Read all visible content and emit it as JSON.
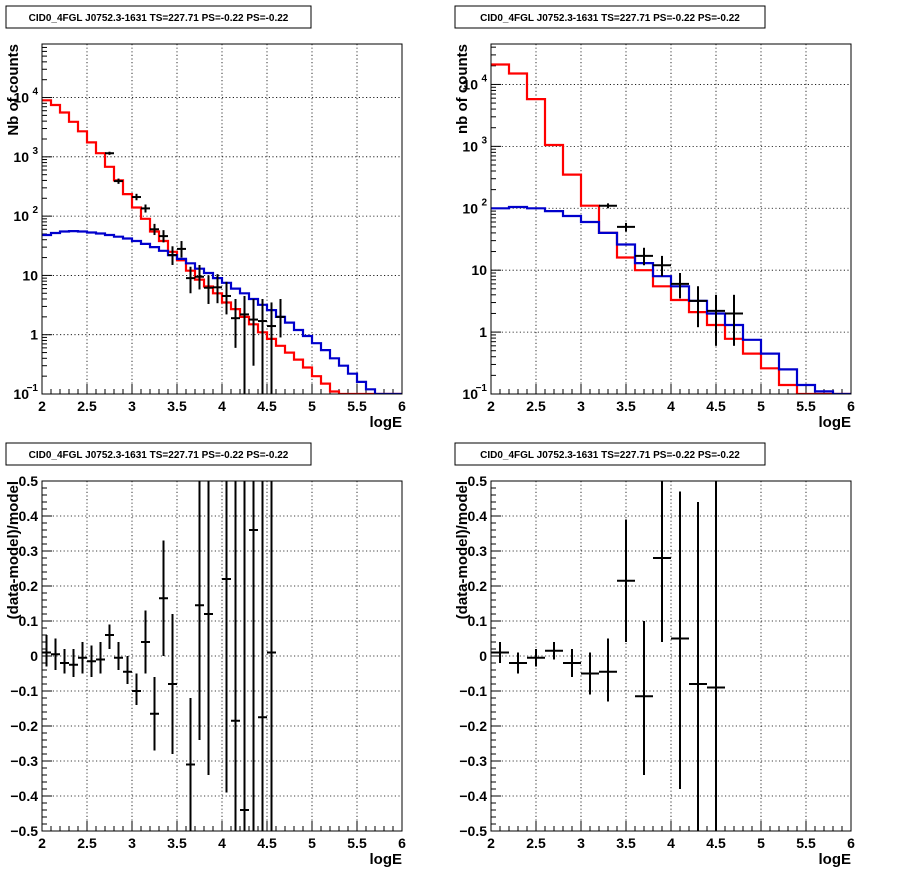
{
  "chart_data": [
    {
      "type": "line",
      "title": "CID0_4FGL J0752.3-1631 TS=227.71 PS=-0.22 PS=-0.22",
      "xlabel": "logE",
      "ylabel": "Nb of counts",
      "xlim": [
        2,
        6
      ],
      "ylim": [
        0.1,
        80000
      ],
      "yscale": "log",
      "grid": true,
      "xticks": [
        "2",
        "2.5",
        "3",
        "3.5",
        "4",
        "4.5",
        "5",
        "5.5",
        "6"
      ],
      "yticks": [
        {
          "v": 0.1,
          "label": "10",
          "sup": "−1"
        },
        {
          "v": 1,
          "label": "1",
          "sup": ""
        },
        {
          "v": 10,
          "label": "10",
          "sup": ""
        },
        {
          "v": 100,
          "label": "10",
          "sup": "2"
        },
        {
          "v": 1000,
          "label": "10",
          "sup": "3"
        },
        {
          "v": 10000,
          "label": "10",
          "sup": "4"
        }
      ],
      "bin_width": 0.1,
      "series": [
        {
          "color": "#ff0000",
          "style": "step",
          "values": [
            9000,
            7500,
            5600,
            3900,
            2700,
            1750,
            1150,
            680,
            400,
            235,
            140,
            90,
            55,
            38,
            25,
            18,
            12,
            8.5,
            6.5,
            5,
            3.5,
            2.7,
            2,
            1.5,
            1.1,
            0.85,
            0.65,
            0.5,
            0.38,
            0.28,
            0.2,
            0.15,
            0.11,
            0.1,
            0.1,
            0.1,
            0.1,
            0.1,
            0.1,
            0.1
          ]
        },
        {
          "color": "#0000cc",
          "style": "step",
          "values": [
            48,
            52,
            55,
            56,
            55,
            53,
            51,
            48,
            45,
            42,
            38,
            34,
            30,
            26,
            22,
            19,
            16,
            13,
            11,
            9,
            7.5,
            6,
            5,
            4,
            3.2,
            2.6,
            2,
            1.6,
            1.2,
            0.95,
            0.72,
            0.55,
            0.4,
            0.3,
            0.22,
            0.16,
            0.12,
            0.1,
            0.1,
            0.1
          ]
        },
        {
          "color": "#000000",
          "style": "points",
          "points": [
            [
              2.75,
              1150,
              1080,
              1220
            ],
            [
              2.85,
              390,
              350,
              430
            ],
            [
              3.05,
              210,
              185,
              238
            ],
            [
              3.15,
              135,
              115,
              157
            ],
            [
              3.25,
              60,
              48,
              74
            ],
            [
              3.35,
              46,
              36,
              58
            ],
            [
              3.45,
              22,
              15,
              31
            ],
            [
              3.55,
              28,
              20,
              38
            ],
            [
              3.65,
              9,
              5,
              14
            ],
            [
              3.75,
              9.5,
              5.8,
              15
            ],
            [
              3.85,
              6.2,
              3.3,
              10
            ],
            [
              3.95,
              6.3,
              3.4,
              10.5
            ],
            [
              4.05,
              4.5,
              2.2,
              7.8
            ],
            [
              4.15,
              1.9,
              0.6,
              4
            ],
            [
              4.25,
              2.2,
              0.1,
              4.5
            ],
            [
              4.35,
              1.8,
              0.3,
              4
            ],
            [
              4.45,
              1.7,
              0.1,
              4
            ],
            [
              4.55,
              1.4,
              0.1,
              3.5
            ],
            [
              4.65,
              2,
              0.9,
              4
            ]
          ]
        }
      ]
    },
    {
      "type": "line",
      "title": "CID0_4FGL J0752.3-1631 TS=227.71 PS=-0.22 PS=-0.22",
      "xlabel": "logE",
      "ylabel": "nb of counts",
      "xlim": [
        2,
        6
      ],
      "ylim": [
        0.1,
        45000
      ],
      "yscale": "log",
      "grid": true,
      "xticks": [
        "2",
        "2.5",
        "3",
        "3.5",
        "4",
        "4.5",
        "5",
        "5.5",
        "6"
      ],
      "yticks": [
        {
          "v": 0.1,
          "label": "10",
          "sup": "−1"
        },
        {
          "v": 1,
          "label": "1",
          "sup": ""
        },
        {
          "v": 10,
          "label": "10",
          "sup": ""
        },
        {
          "v": 100,
          "label": "10",
          "sup": "2"
        },
        {
          "v": 1000,
          "label": "10",
          "sup": "3"
        },
        {
          "v": 10000,
          "label": "10",
          "sup": "4"
        }
      ],
      "bin_width": 0.2,
      "series": [
        {
          "color": "#ff0000",
          "style": "step",
          "values": [
            21000,
            15000,
            5800,
            1050,
            350,
            110,
            40,
            16,
            10,
            5.5,
            3.3,
            2.1,
            1.3,
            0.78,
            0.45,
            0.26,
            0.14,
            0.1,
            0.1,
            0.1
          ]
        },
        {
          "color": "#0000cc",
          "style": "step",
          "values": [
            100,
            105,
            100,
            90,
            75,
            60,
            40,
            26,
            13,
            8,
            5.5,
            3.2,
            2,
            1.3,
            0.75,
            0.45,
            0.25,
            0.14,
            0.11,
            0.1
          ]
        },
        {
          "color": "#000000",
          "style": "points",
          "points": [
            [
              3.3,
              110,
              100,
              120
            ],
            [
              3.5,
              50,
              42,
              58
            ],
            [
              3.7,
              17,
              12,
              23
            ],
            [
              3.9,
              12,
              8,
              17
            ],
            [
              4.1,
              6,
              3.5,
              9
            ],
            [
              4.3,
              3.2,
              1.2,
              5.5
            ],
            [
              4.5,
              2.2,
              0.6,
              4
            ],
            [
              4.7,
              2,
              0.6,
              4
            ]
          ]
        }
      ]
    },
    {
      "type": "scatter",
      "title": "CID0_4FGL J0752.3-1631 TS=227.71 PS=-0.22 PS=-0.22",
      "xlabel": "logE",
      "ylabel": "(data-model)/model",
      "xlim": [
        2,
        6
      ],
      "ylim": [
        -0.5,
        0.5
      ],
      "yscale": "linear",
      "grid": true,
      "xticks": [
        "2",
        "2.5",
        "3",
        "3.5",
        "4",
        "4.5",
        "5",
        "5.5",
        "6"
      ],
      "yticks": [
        {
          "v": -0.5,
          "label": "−0.5",
          "sup": ""
        },
        {
          "v": -0.4,
          "label": "−0.4",
          "sup": ""
        },
        {
          "v": -0.3,
          "label": "−0.3",
          "sup": ""
        },
        {
          "v": -0.2,
          "label": "−0.2",
          "sup": ""
        },
        {
          "v": -0.1,
          "label": "−0.1",
          "sup": ""
        },
        {
          "v": 0,
          "label": "0",
          "sup": ""
        },
        {
          "v": 0.1,
          "label": "0.1",
          "sup": ""
        },
        {
          "v": 0.2,
          "label": "0.2",
          "sup": ""
        },
        {
          "v": 0.3,
          "label": "0.3",
          "sup": ""
        },
        {
          "v": 0.4,
          "label": "0.4",
          "sup": ""
        },
        {
          "v": 0.5,
          "label": "0.5",
          "sup": ""
        }
      ],
      "bin_width": 0.1,
      "series": [
        {
          "color": "#000000",
          "style": "points",
          "points": [
            [
              2.05,
              0.01,
              -0.03,
              0.06
            ],
            [
              2.15,
              0.005,
              -0.04,
              0.05
            ],
            [
              2.25,
              -0.02,
              -0.05,
              0.02
            ],
            [
              2.35,
              -0.025,
              -0.06,
              0.02
            ],
            [
              2.45,
              -0.005,
              -0.05,
              0.04
            ],
            [
              2.55,
              -0.015,
              -0.06,
              0.03
            ],
            [
              2.65,
              -0.01,
              -0.05,
              0.04
            ],
            [
              2.75,
              0.06,
              0.02,
              0.09
            ],
            [
              2.85,
              -0.005,
              -0.04,
              0.04
            ],
            [
              2.95,
              -0.045,
              -0.08,
              0.0
            ],
            [
              3.05,
              -0.1,
              -0.14,
              -0.05
            ],
            [
              3.15,
              0.04,
              -0.05,
              0.13
            ],
            [
              3.25,
              -0.165,
              -0.27,
              -0.06
            ],
            [
              3.35,
              0.165,
              0.0,
              0.33
            ],
            [
              3.45,
              -0.08,
              -0.28,
              0.12
            ],
            [
              3.65,
              -0.31,
              -0.5,
              -0.12
            ],
            [
              3.75,
              0.145,
              -0.24,
              0.5
            ],
            [
              3.85,
              0.12,
              -0.34,
              0.5
            ],
            [
              4.05,
              0.22,
              -0.39,
              0.5
            ],
            [
              4.15,
              -0.185,
              -0.5,
              0.5
            ],
            [
              4.25,
              -0.44,
              -0.5,
              0.5
            ],
            [
              4.35,
              0.36,
              -0.5,
              0.5
            ],
            [
              4.45,
              -0.175,
              -0.5,
              0.5
            ],
            [
              4.55,
              0.01,
              -0.5,
              0.5
            ]
          ]
        }
      ]
    },
    {
      "type": "scatter",
      "title": "CID0_4FGL J0752.3-1631 TS=227.71 PS=-0.22 PS=-0.22",
      "xlabel": "logE",
      "ylabel": "(data-model)/model",
      "xlim": [
        2,
        6
      ],
      "ylim": [
        -0.5,
        0.5
      ],
      "yscale": "linear",
      "grid": true,
      "xticks": [
        "2",
        "2.5",
        "3",
        "3.5",
        "4",
        "4.5",
        "5",
        "5.5",
        "6"
      ],
      "yticks": [
        {
          "v": -0.5,
          "label": "−0.5",
          "sup": ""
        },
        {
          "v": -0.4,
          "label": "−0.4",
          "sup": ""
        },
        {
          "v": -0.3,
          "label": "−0.3",
          "sup": ""
        },
        {
          "v": -0.2,
          "label": "−0.2",
          "sup": ""
        },
        {
          "v": -0.1,
          "label": "−0.1",
          "sup": ""
        },
        {
          "v": 0,
          "label": "0",
          "sup": ""
        },
        {
          "v": 0.1,
          "label": "0.1",
          "sup": ""
        },
        {
          "v": 0.2,
          "label": "0.2",
          "sup": ""
        },
        {
          "v": 0.3,
          "label": "0.3",
          "sup": ""
        },
        {
          "v": 0.4,
          "label": "0.4",
          "sup": ""
        },
        {
          "v": 0.5,
          "label": "0.5",
          "sup": ""
        }
      ],
      "bin_width": 0.2,
      "series": [
        {
          "color": "#000000",
          "style": "points",
          "points": [
            [
              2.1,
              0.01,
              -0.02,
              0.04
            ],
            [
              2.3,
              -0.02,
              -0.05,
              0.01
            ],
            [
              2.5,
              -0.005,
              -0.03,
              0.02
            ],
            [
              2.7,
              0.015,
              -0.01,
              0.04
            ],
            [
              2.9,
              -0.02,
              -0.06,
              0.02
            ],
            [
              3.1,
              -0.05,
              -0.11,
              0.01
            ],
            [
              3.3,
              -0.045,
              -0.13,
              0.05
            ],
            [
              3.5,
              0.215,
              0.04,
              0.39
            ],
            [
              3.7,
              -0.115,
              -0.34,
              0.1
            ],
            [
              3.9,
              0.28,
              0.04,
              0.5
            ],
            [
              4.1,
              0.05,
              -0.38,
              0.47
            ],
            [
              4.3,
              -0.08,
              -0.5,
              0.44
            ],
            [
              4.5,
              -0.09,
              -0.5,
              0.5
            ]
          ]
        }
      ]
    }
  ]
}
